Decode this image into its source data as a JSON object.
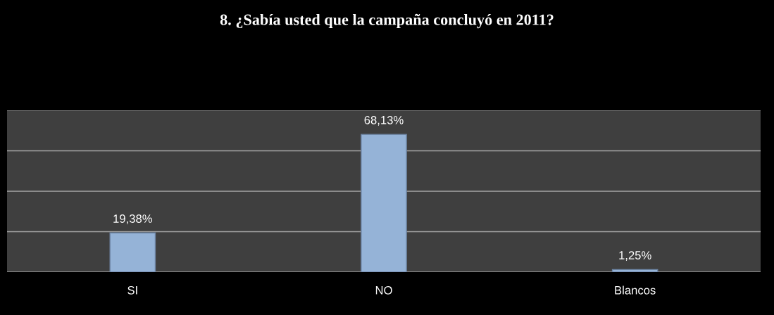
{
  "chart_data": {
    "type": "bar",
    "title": "8. ¿Sabía usted que la campaña concluyó en 2011?",
    "categories": [
      "SI",
      "NO",
      "Blancos"
    ],
    "values": [
      19.38,
      68.13,
      1.25
    ],
    "value_labels": [
      "19,38%",
      "68,13%",
      "1,25%"
    ],
    "color": "#95b3d7",
    "ylim": [
      0,
      80
    ],
    "yticks": [
      {
        "value": 0,
        "label": null
      },
      {
        "value": 20,
        "label": null
      },
      {
        "value": 40,
        "label": null
      },
      {
        "value": 60,
        "label": null
      },
      {
        "value": 80,
        "label": null
      }
    ],
    "tick_labels": "x",
    "grid": "y"
  }
}
